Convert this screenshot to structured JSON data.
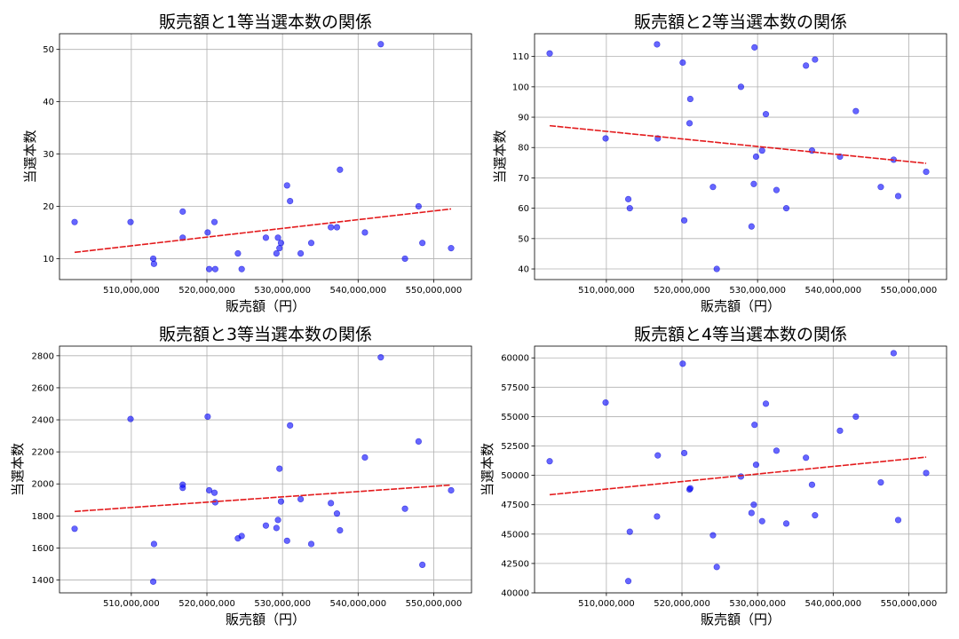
{
  "chart_data": [
    {
      "type": "scatter",
      "title": "販売額と1等当選本数の関係",
      "xlabel": "販売額（円）",
      "ylabel": "当選本数",
      "xlim": [
        500500000,
        555000000
      ],
      "ylim": [
        6,
        53
      ],
      "xticks": [
        510000000,
        520000000,
        530000000,
        540000000,
        550000000
      ],
      "xtick_labels": [
        "510,000,000",
        "520,000,000",
        "530,000,000",
        "540,000,000",
        "550,000,000"
      ],
      "yticks": [
        10,
        20,
        30,
        40,
        50
      ],
      "ytick_labels": [
        "10",
        "20",
        "30",
        "40",
        "50"
      ],
      "grid": true,
      "points": [
        [
          502500000,
          17
        ],
        [
          509900000,
          17
        ],
        [
          512900000,
          10
        ],
        [
          513000000,
          9
        ],
        [
          516800000,
          19
        ],
        [
          516800000,
          14
        ],
        [
          520100000,
          15
        ],
        [
          520300000,
          8
        ],
        [
          521000000,
          17
        ],
        [
          521100000,
          8
        ],
        [
          524100000,
          11
        ],
        [
          524600000,
          8
        ],
        [
          527800000,
          14
        ],
        [
          529200000,
          11
        ],
        [
          529400000,
          14
        ],
        [
          529600000,
          12
        ],
        [
          529800000,
          13
        ],
        [
          530600000,
          24
        ],
        [
          531000000,
          21
        ],
        [
          532400000,
          11
        ],
        [
          533800000,
          13
        ],
        [
          536400000,
          16
        ],
        [
          537200000,
          16
        ],
        [
          537600000,
          27
        ],
        [
          540900000,
          15
        ],
        [
          543000000,
          51
        ],
        [
          546200000,
          10
        ],
        [
          548000000,
          20
        ],
        [
          548500000,
          13
        ],
        [
          552300000,
          12
        ]
      ],
      "trend_line": {
        "x": [
          502500000,
          552300000
        ],
        "y": [
          11.2,
          19.5
        ]
      }
    },
    {
      "type": "scatter",
      "title": "販売額と2等当選本数の関係",
      "xlabel": "販売額（円）",
      "ylabel": "当選本数",
      "xlim": [
        500500000,
        555000000
      ],
      "ylim": [
        36.5,
        117.5
      ],
      "xticks": [
        510000000,
        520000000,
        530000000,
        540000000,
        550000000
      ],
      "xtick_labels": [
        "510,000,000",
        "520,000,000",
        "530,000,000",
        "540,000,000",
        "550,000,000"
      ],
      "yticks": [
        40,
        50,
        60,
        70,
        80,
        90,
        100,
        110
      ],
      "ytick_labels": [
        "40",
        "50",
        "60",
        "70",
        "80",
        "90",
        "100",
        "110"
      ],
      "grid": true,
      "points": [
        [
          502500000,
          111
        ],
        [
          509900000,
          83
        ],
        [
          512900000,
          63
        ],
        [
          513100000,
          60
        ],
        [
          516700000,
          114
        ],
        [
          516800000,
          83
        ],
        [
          520100000,
          108
        ],
        [
          520300000,
          56
        ],
        [
          521000000,
          88
        ],
        [
          521100000,
          96
        ],
        [
          524100000,
          67
        ],
        [
          524600000,
          40
        ],
        [
          527800000,
          100
        ],
        [
          529200000,
          54
        ],
        [
          529500000,
          68
        ],
        [
          529600000,
          113
        ],
        [
          529800000,
          77
        ],
        [
          530600000,
          79
        ],
        [
          531100000,
          91
        ],
        [
          532500000,
          66
        ],
        [
          533800000,
          60
        ],
        [
          536400000,
          107
        ],
        [
          537200000,
          79
        ],
        [
          537600000,
          109
        ],
        [
          540900000,
          77
        ],
        [
          543000000,
          92
        ],
        [
          546300000,
          67
        ],
        [
          548000000,
          76
        ],
        [
          548600000,
          64
        ],
        [
          552300000,
          72
        ]
      ],
      "trend_line": {
        "x": [
          502500000,
          552300000
        ],
        "y": [
          87.2,
          74.8
        ]
      }
    },
    {
      "type": "scatter",
      "title": "販売額と3等当選本数の関係",
      "xlabel": "販売額（円）",
      "ylabel": "当選本数",
      "xlim": [
        500500000,
        555000000
      ],
      "ylim": [
        1320,
        2860
      ],
      "xticks": [
        510000000,
        520000000,
        530000000,
        540000000,
        550000000
      ],
      "xtick_labels": [
        "510,000,000",
        "520,000,000",
        "530,000,000",
        "540,000,000",
        "550,000,000"
      ],
      "yticks": [
        1400,
        1600,
        1800,
        2000,
        2200,
        2400,
        2600,
        2800
      ],
      "ytick_labels": [
        "1400",
        "1600",
        "1800",
        "2000",
        "2200",
        "2400",
        "2600",
        "2800"
      ],
      "grid": true,
      "points": [
        [
          502500000,
          1720
        ],
        [
          509900000,
          2405
        ],
        [
          512900000,
          1390
        ],
        [
          513000000,
          1625
        ],
        [
          516800000,
          1995
        ],
        [
          516800000,
          1975
        ],
        [
          520100000,
          2420
        ],
        [
          520300000,
          1960
        ],
        [
          521000000,
          1945
        ],
        [
          521100000,
          1885
        ],
        [
          524100000,
          1660
        ],
        [
          524600000,
          1675
        ],
        [
          527800000,
          1740
        ],
        [
          529200000,
          1725
        ],
        [
          529400000,
          1775
        ],
        [
          529600000,
          2095
        ],
        [
          529800000,
          1890
        ],
        [
          530600000,
          1645
        ],
        [
          531000000,
          2365
        ],
        [
          532400000,
          1905
        ],
        [
          533800000,
          1625
        ],
        [
          536400000,
          1880
        ],
        [
          537200000,
          1815
        ],
        [
          537600000,
          1710
        ],
        [
          540900000,
          2165
        ],
        [
          543000000,
          2790
        ],
        [
          546200000,
          1845
        ],
        [
          548000000,
          2265
        ],
        [
          548500000,
          1495
        ],
        [
          552300000,
          1960
        ]
      ],
      "trend_line": {
        "x": [
          502500000,
          552300000
        ],
        "y": [
          1828,
          1993
        ]
      }
    },
    {
      "type": "scatter",
      "title": "販売額と4等当選本数の関係",
      "xlabel": "販売額（円）",
      "ylabel": "当選本数",
      "xlim": [
        500500000,
        555000000
      ],
      "ylim": [
        40000,
        61000
      ],
      "xticks": [
        510000000,
        520000000,
        530000000,
        540000000,
        550000000
      ],
      "xtick_labels": [
        "510,000,000",
        "520,000,000",
        "530,000,000",
        "540,000,000",
        "550,000,000"
      ],
      "yticks": [
        40000,
        42500,
        45000,
        47500,
        50000,
        52500,
        55000,
        57500,
        60000
      ],
      "ytick_labels": [
        "40000",
        "42500",
        "45000",
        "47500",
        "50000",
        "52500",
        "55000",
        "57500",
        "60000"
      ],
      "grid": true,
      "points": [
        [
          502500000,
          51200
        ],
        [
          509900000,
          56200
        ],
        [
          512900000,
          41000
        ],
        [
          513100000,
          45200
        ],
        [
          516700000,
          46500
        ],
        [
          516800000,
          51700
        ],
        [
          520100000,
          59500
        ],
        [
          520300000,
          51900
        ],
        [
          521000000,
          48800
        ],
        [
          521100000,
          48900
        ],
        [
          524100000,
          44900
        ],
        [
          524600000,
          42200
        ],
        [
          527800000,
          49900
        ],
        [
          529200000,
          46800
        ],
        [
          529500000,
          47500
        ],
        [
          529600000,
          54300
        ],
        [
          529800000,
          50900
        ],
        [
          530600000,
          46100
        ],
        [
          531100000,
          56100
        ],
        [
          532500000,
          52100
        ],
        [
          533800000,
          45900
        ],
        [
          536400000,
          51500
        ],
        [
          537200000,
          49200
        ],
        [
          537600000,
          46600
        ],
        [
          540900000,
          53800
        ],
        [
          543000000,
          55000
        ],
        [
          546300000,
          49400
        ],
        [
          548000000,
          60400
        ],
        [
          548600000,
          46200
        ],
        [
          552300000,
          50200
        ]
      ],
      "trend_line": {
        "x": [
          502500000,
          552300000
        ],
        "y": [
          48350,
          51550
        ]
      }
    }
  ]
}
